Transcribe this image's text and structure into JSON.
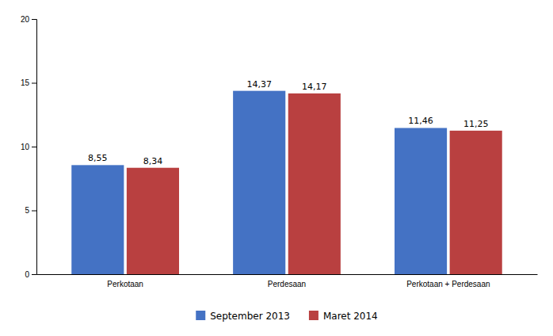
{
  "chart_data": {
    "type": "bar",
    "categories": [
      "Perkotaan",
      "Perdesaan",
      "Perkotaan + Perdesaan"
    ],
    "series": [
      {
        "name": "September 2013",
        "color": "#4472C4",
        "values": [
          8.55,
          14.37,
          11.46
        ],
        "value_labels": [
          "8,55",
          "14,37",
          "11,46"
        ]
      },
      {
        "name": "Maret 2014",
        "color": "#B94040",
        "values": [
          8.34,
          14.17,
          11.25
        ],
        "value_labels": [
          "8,34",
          "14,17",
          "11,25"
        ]
      }
    ],
    "ylim": [
      0,
      20
    ],
    "yticks": [
      0,
      5,
      10,
      15,
      20
    ],
    "grid": false,
    "legend": "bottom",
    "data_labels": true
  }
}
